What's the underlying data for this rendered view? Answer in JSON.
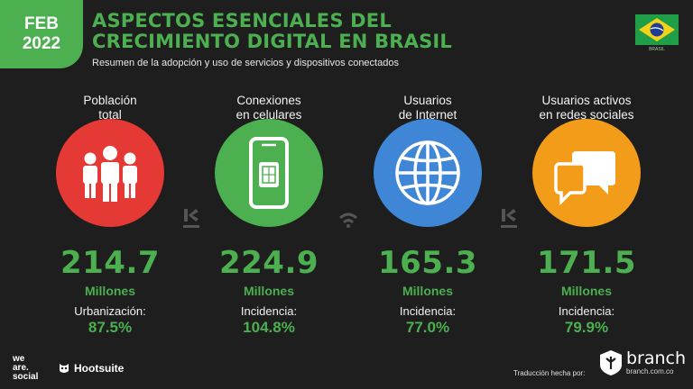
{
  "badge": {
    "line1": "FEB",
    "line2": "2022"
  },
  "header": {
    "title_line1": "ASPECTOS ESENCIALES DEL",
    "title_line2": "CRECIMIENTO DIGITAL EN BRASIL",
    "subtitle": "Resumen de la adopción y uso de servicios y dispositivos conectados",
    "flag_caption": "BRASIL"
  },
  "stats": [
    {
      "label_line1": "Población",
      "label_line2": "total",
      "value": "214.7",
      "unit": "Millones",
      "metric_label": "Urbanización:",
      "metric_value": "87.5%",
      "color": "#e53935",
      "icon": "people-icon"
    },
    {
      "label_line1": "Conexiones",
      "label_line2": "en celulares",
      "value": "224.9",
      "unit": "Millones",
      "metric_label": "Incidencia:",
      "metric_value": "104.8%",
      "color": "#4caf50",
      "icon": "mobile-phone-icon"
    },
    {
      "label_line1": "Usuarios",
      "label_line2": "de Internet",
      "value": "165.3",
      "unit": "Millones",
      "metric_label": "Incidencia:",
      "metric_value": "77.0%",
      "color": "#3f87d6",
      "icon": "globe-icon"
    },
    {
      "label_line1": "Usuarios activos",
      "label_line2": "en redes sociales",
      "value": "171.5",
      "unit": "Millones",
      "metric_label": "Incidencia:",
      "metric_value": "79.9%",
      "color": "#f39c1a",
      "icon": "chat-bubbles-icon"
    }
  ],
  "footer": {
    "was_line1": "we",
    "was_line2": "are.",
    "was_line3": "social",
    "hootsuite": "Hootsuite",
    "credit": "Traducción hecha por:",
    "branch_name": "branch",
    "branch_url": "branch.com.co"
  },
  "colors": {
    "accent": "#4caf50",
    "background": "#1e1e1e"
  }
}
